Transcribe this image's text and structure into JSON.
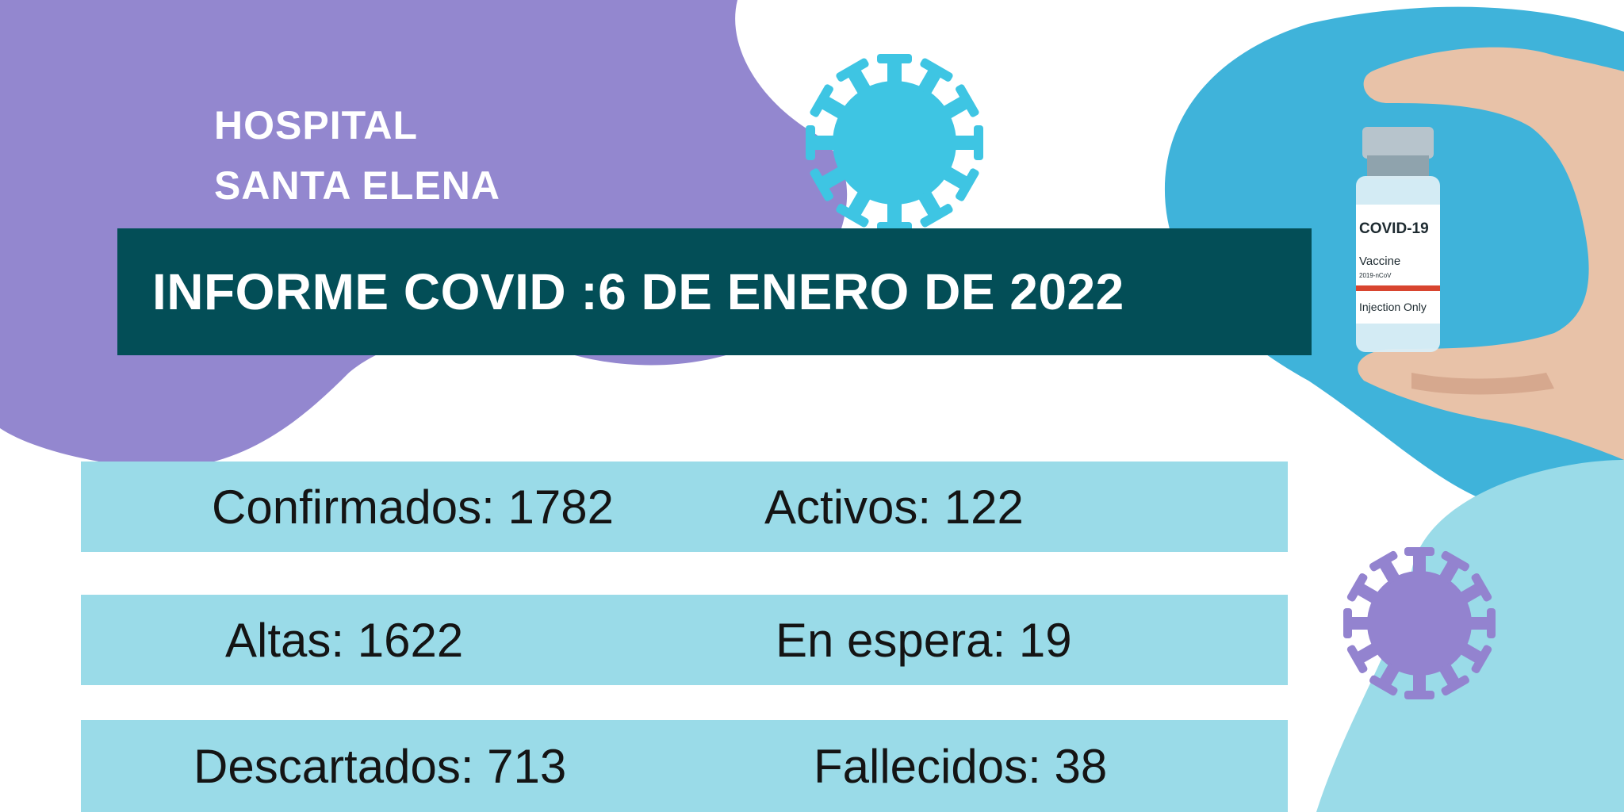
{
  "header": {
    "hospital_line1": "HOSPITAL",
    "hospital_line2": "SANTA ELENA"
  },
  "banner": {
    "title": "INFORME COVID :6 DE ENERO DE 2022"
  },
  "stats": {
    "confirmados": "Confirmados: 1782",
    "activos": "Activos: 122",
    "altas": "Altas: 1622",
    "en_espera": "En espera: 19",
    "descartados": "Descartados: 713",
    "fallecidos": "Fallecidos: 38"
  },
  "vial": {
    "brand": "COVID-19",
    "product": "Vaccine",
    "code": "2019-nCoV",
    "note": "Injection Only"
  },
  "colors": {
    "purple_blob": "#9387cf",
    "blue_blob": "#3fb3da",
    "banner": "#034e57",
    "stat_band": "#9adbe8",
    "virus_blue": "#3ec5e3",
    "virus_purple": "#9383cf"
  },
  "icons": [
    "virus-icon-blue",
    "virus-icon-purple",
    "vaccine-vial-image",
    "hand-image"
  ]
}
